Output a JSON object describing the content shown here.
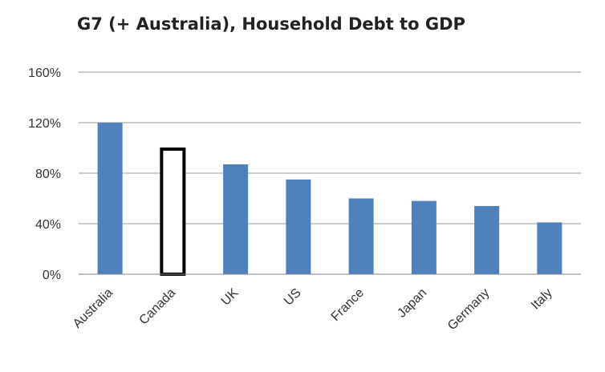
{
  "chart_data": {
    "type": "bar",
    "title": "G7 (+ Australia), Household Debt to GDP",
    "categories": [
      "Australia",
      "Canada",
      "UK",
      "US",
      "France",
      "Japan",
      "Germany",
      "Italy"
    ],
    "values": [
      120,
      100,
      87,
      75,
      60,
      58,
      54,
      41
    ],
    "highlight": "Canada",
    "ylim": [
      0,
      160
    ],
    "yticks": [
      "0%",
      "40%",
      "80%",
      "120%",
      "160%"
    ],
    "ytick_values": [
      0,
      40,
      80,
      120,
      160
    ],
    "grid": true,
    "legend": "none",
    "colors": {
      "bar": "#4f81bd",
      "highlight_border": "#000000",
      "grid": "#9a9a9a",
      "axis": "#868686"
    }
  }
}
